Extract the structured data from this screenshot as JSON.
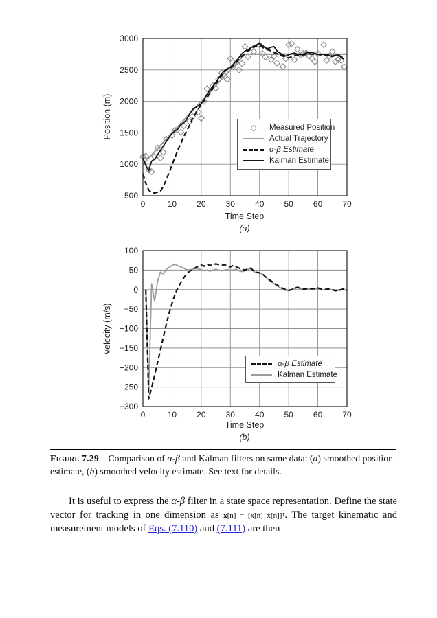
{
  "colors": {
    "link_blue": "#2323d9",
    "grid_gray": "#8f8f8f",
    "line_gray": "#9c9c9c",
    "line_black": "#141414",
    "scatter_gray": "#8a8a8a"
  },
  "caption": {
    "label": "Figure 7.29",
    "s1": " Comparison of ",
    "greek1": "α-β",
    "s2": " and Kalman filters on same data: (",
    "a": "a",
    "s3": ") smoothed position estimate, (",
    "b": "b",
    "s4": ") smoothed velocity estimate. See text for details."
  },
  "para": {
    "s1": "It is useful to express the ",
    "greek1": "α-β",
    "s2": " filter in a state space representation. Define the state vector for tracking in one dimension as ",
    "eq_x": "x",
    "eq_rest": "[n] = [x[n]  ẋ[n]]ᵀ",
    "s3": ". The target kinematic and measurement models of ",
    "link1": "Eqs. (7.110)",
    "s4": " and ",
    "link2": "(7.111)",
    "s5": " are then"
  },
  "chart_data": [
    {
      "type": "line",
      "title": "",
      "xlabel": "Time Step",
      "ylabel": "Position (m)",
      "sublabel": "(a)",
      "xlim": [
        0,
        70
      ],
      "ylim": [
        500,
        3000
      ],
      "xticks": [
        0,
        10,
        20,
        30,
        40,
        50,
        60,
        70
      ],
      "yticks": [
        500,
        1000,
        1500,
        2000,
        2500,
        3000
      ],
      "grid": true,
      "grid_color": "#8f8f8f",
      "legend_position": "inside lower-right",
      "series": [
        {
          "id": "measured",
          "name": "Measured Position",
          "type": "scatter",
          "marker": "diamond",
          "color": "#8a8a8a",
          "x": [
            0,
            1,
            2,
            3,
            4,
            5,
            6,
            7,
            8,
            10,
            11,
            13,
            14,
            16,
            17,
            19,
            20,
            21,
            22,
            24,
            25,
            26,
            27,
            28,
            29,
            30,
            31,
            32,
            33,
            34,
            35,
            36,
            38,
            40,
            41,
            42,
            44,
            45,
            46,
            48,
            49,
            50,
            51,
            52,
            53,
            54,
            55,
            56,
            57,
            58,
            59,
            60,
            62,
            63,
            64,
            65,
            66,
            67,
            68,
            69
          ],
          "y": [
            1120,
            1130,
            910,
            880,
            1120,
            1260,
            1100,
            1190,
            1400,
            1460,
            1540,
            1510,
            1610,
            1680,
            1760,
            1830,
            1730,
            2000,
            2200,
            2250,
            2210,
            2350,
            2450,
            2400,
            2350,
            2680,
            2550,
            2620,
            2500,
            2600,
            2870,
            2705,
            2790,
            2900,
            2760,
            2705,
            2660,
            2720,
            2610,
            2550,
            2680,
            2900,
            2920,
            2660,
            2830,
            2740,
            2760,
            2770,
            2720,
            2680,
            2630,
            2760,
            2900,
            2650,
            2720,
            2790,
            2630,
            2660,
            2650,
            2550
          ]
        },
        {
          "id": "actual",
          "name": "Actual Trajectory",
          "type": "line",
          "color": "#9c9c9c",
          "width": 2.2,
          "x": [
            0,
            35,
            70
          ],
          "y": [
            1000,
            2750,
            2750
          ]
        },
        {
          "id": "alpha-beta",
          "name": "α-β Estimate",
          "type": "line",
          "dash": true,
          "color": "#141414",
          "width": 2.2,
          "x": [
            0,
            1,
            2,
            3,
            4,
            5,
            6,
            7,
            8,
            9,
            10,
            11,
            12,
            13,
            14,
            15,
            16,
            17,
            18,
            19,
            20,
            21,
            22,
            23,
            24,
            25,
            26,
            27,
            28,
            29,
            30,
            31,
            32,
            33,
            34,
            35,
            36,
            37,
            38,
            39,
            40,
            41,
            42,
            43,
            44,
            45,
            46,
            47,
            48,
            49,
            50,
            51,
            52,
            53,
            54,
            55,
            56,
            57,
            58,
            59,
            60,
            61,
            62,
            63,
            64,
            65,
            66,
            67,
            68,
            69
          ],
          "y": [
            850,
            700,
            590,
            550,
            545,
            555,
            570,
            650,
            750,
            870,
            990,
            1110,
            1230,
            1330,
            1440,
            1530,
            1620,
            1720,
            1800,
            1880,
            1950,
            2010,
            2060,
            2130,
            2210,
            2280,
            2340,
            2410,
            2470,
            2510,
            2530,
            2570,
            2620,
            2680,
            2720,
            2760,
            2800,
            2830,
            2860,
            2880,
            2890,
            2860,
            2830,
            2820,
            2800,
            2780,
            2760,
            2740,
            2720,
            2700,
            2690,
            2710,
            2730,
            2740,
            2730,
            2740,
            2750,
            2760,
            2750,
            2740,
            2750,
            2740,
            2730,
            2740,
            2730,
            2720,
            2730,
            2740,
            2710,
            2680
          ]
        },
        {
          "id": "kalman",
          "name": "Kalman Estimate",
          "type": "line",
          "color": "#141414",
          "width": 1.8,
          "x": [
            0,
            1,
            2,
            3,
            4,
            5,
            6,
            7,
            8,
            9,
            10,
            11,
            12,
            13,
            14,
            15,
            16,
            17,
            18,
            19,
            20,
            21,
            22,
            23,
            24,
            25,
            26,
            27,
            28,
            29,
            30,
            31,
            32,
            33,
            34,
            35,
            36,
            37,
            38,
            39,
            40,
            41,
            42,
            43,
            44,
            45,
            46,
            47,
            48,
            49,
            50,
            51,
            52,
            53,
            54,
            55,
            56,
            57,
            58,
            59,
            60,
            61,
            62,
            63,
            64,
            65,
            66,
            67,
            68,
            69
          ],
          "y": [
            1100,
            980,
            900,
            1050,
            1080,
            1150,
            1220,
            1290,
            1360,
            1430,
            1490,
            1530,
            1560,
            1630,
            1660,
            1710,
            1800,
            1870,
            1900,
            1930,
            1960,
            2030,
            2110,
            2180,
            2240,
            2300,
            2370,
            2440,
            2490,
            2520,
            2540,
            2590,
            2640,
            2700,
            2760,
            2800,
            2820,
            2850,
            2880,
            2900,
            2920,
            2890,
            2850,
            2840,
            2860,
            2870,
            2800,
            2770,
            2740,
            2720,
            2740,
            2760,
            2770,
            2750,
            2740,
            2750,
            2770,
            2780,
            2780,
            2760,
            2750,
            2740,
            2750,
            2750,
            2730,
            2710,
            2730,
            2740,
            2700,
            2670
          ]
        }
      ]
    },
    {
      "type": "line",
      "title": "",
      "xlabel": "Time Step",
      "ylabel": "Velocity (m/s)",
      "sublabel": "(b)",
      "xlim": [
        0,
        70
      ],
      "ylim": [
        -300,
        100
      ],
      "xticks": [
        0,
        10,
        20,
        30,
        40,
        50,
        60,
        70
      ],
      "yticks": [
        -300,
        -250,
        -200,
        -150,
        -100,
        -50,
        0,
        50,
        100
      ],
      "grid": true,
      "grid_color": "#8f8f8f",
      "legend_position": "inside lower-right",
      "series": [
        {
          "id": "alpha-beta",
          "name": "α-β Estimate",
          "type": "line",
          "dash": true,
          "color": "#141414",
          "width": 2.2,
          "z": 1,
          "x": [
            1,
            2,
            3,
            4,
            5,
            6,
            7,
            8,
            9,
            10,
            11,
            12,
            13,
            14,
            15,
            16,
            17,
            18,
            19,
            20,
            21,
            22,
            23,
            24,
            25,
            26,
            27,
            28,
            29,
            30,
            31,
            32,
            33,
            34,
            35,
            36,
            37,
            38,
            39,
            40,
            41,
            42,
            43,
            44,
            45,
            46,
            47,
            48,
            49,
            50,
            51,
            52,
            53,
            54,
            55,
            56,
            57,
            58,
            59,
            60,
            61,
            62,
            63,
            64,
            65,
            66,
            67,
            68,
            69,
            70
          ],
          "y": [
            0,
            -280,
            -252,
            -220,
            -188,
            -155,
            -122,
            -90,
            -60,
            -35,
            -12,
            5,
            18,
            30,
            40,
            47,
            52,
            56,
            60,
            63,
            60,
            65,
            62,
            63,
            66,
            64,
            62,
            64,
            60,
            58,
            62,
            58,
            55,
            52,
            50,
            53,
            55,
            48,
            44,
            43,
            40,
            33,
            27,
            22,
            17,
            12,
            7,
            3,
            0,
            -2,
            0,
            3,
            6,
            3,
            1,
            2,
            3,
            2,
            3,
            4,
            2,
            0,
            1,
            2,
            0,
            -3,
            -2,
            0,
            2,
            -2
          ]
        },
        {
          "id": "kalman",
          "name": "Kalman Estimate",
          "type": "line",
          "color": "#9c9c9c",
          "width": 1.8,
          "z": 0,
          "x": [
            1,
            2,
            3,
            4,
            5,
            6,
            7,
            8,
            9,
            10,
            11,
            12,
            13,
            14,
            15,
            16,
            17,
            18,
            19,
            20,
            21,
            22,
            23,
            24,
            25,
            26,
            27,
            28,
            29,
            30,
            31,
            32,
            33,
            34,
            35,
            36,
            37,
            38,
            39,
            40,
            41,
            42,
            43,
            44,
            45,
            46,
            47,
            48,
            49,
            50,
            51,
            52,
            53,
            54,
            55,
            56,
            57,
            58,
            59,
            60,
            61,
            62,
            63,
            64,
            65,
            66,
            67,
            68,
            69,
            70
          ],
          "y": [
            0,
            -255,
            15,
            -30,
            20,
            45,
            40,
            52,
            57,
            62,
            65,
            61,
            58,
            55,
            51,
            50,
            52,
            54,
            53,
            51,
            48,
            50,
            47,
            50,
            52,
            50,
            48,
            50,
            51,
            50,
            50,
            52,
            48,
            46,
            48,
            52,
            54,
            46,
            43,
            42,
            40,
            33,
            26,
            20,
            15,
            10,
            5,
            1,
            -2,
            -3,
            -1,
            2,
            5,
            2,
            0,
            1,
            2,
            1,
            2,
            3,
            1,
            -1,
            0,
            1,
            -1,
            -3,
            -2,
            -1,
            1,
            -2
          ]
        }
      ]
    }
  ]
}
